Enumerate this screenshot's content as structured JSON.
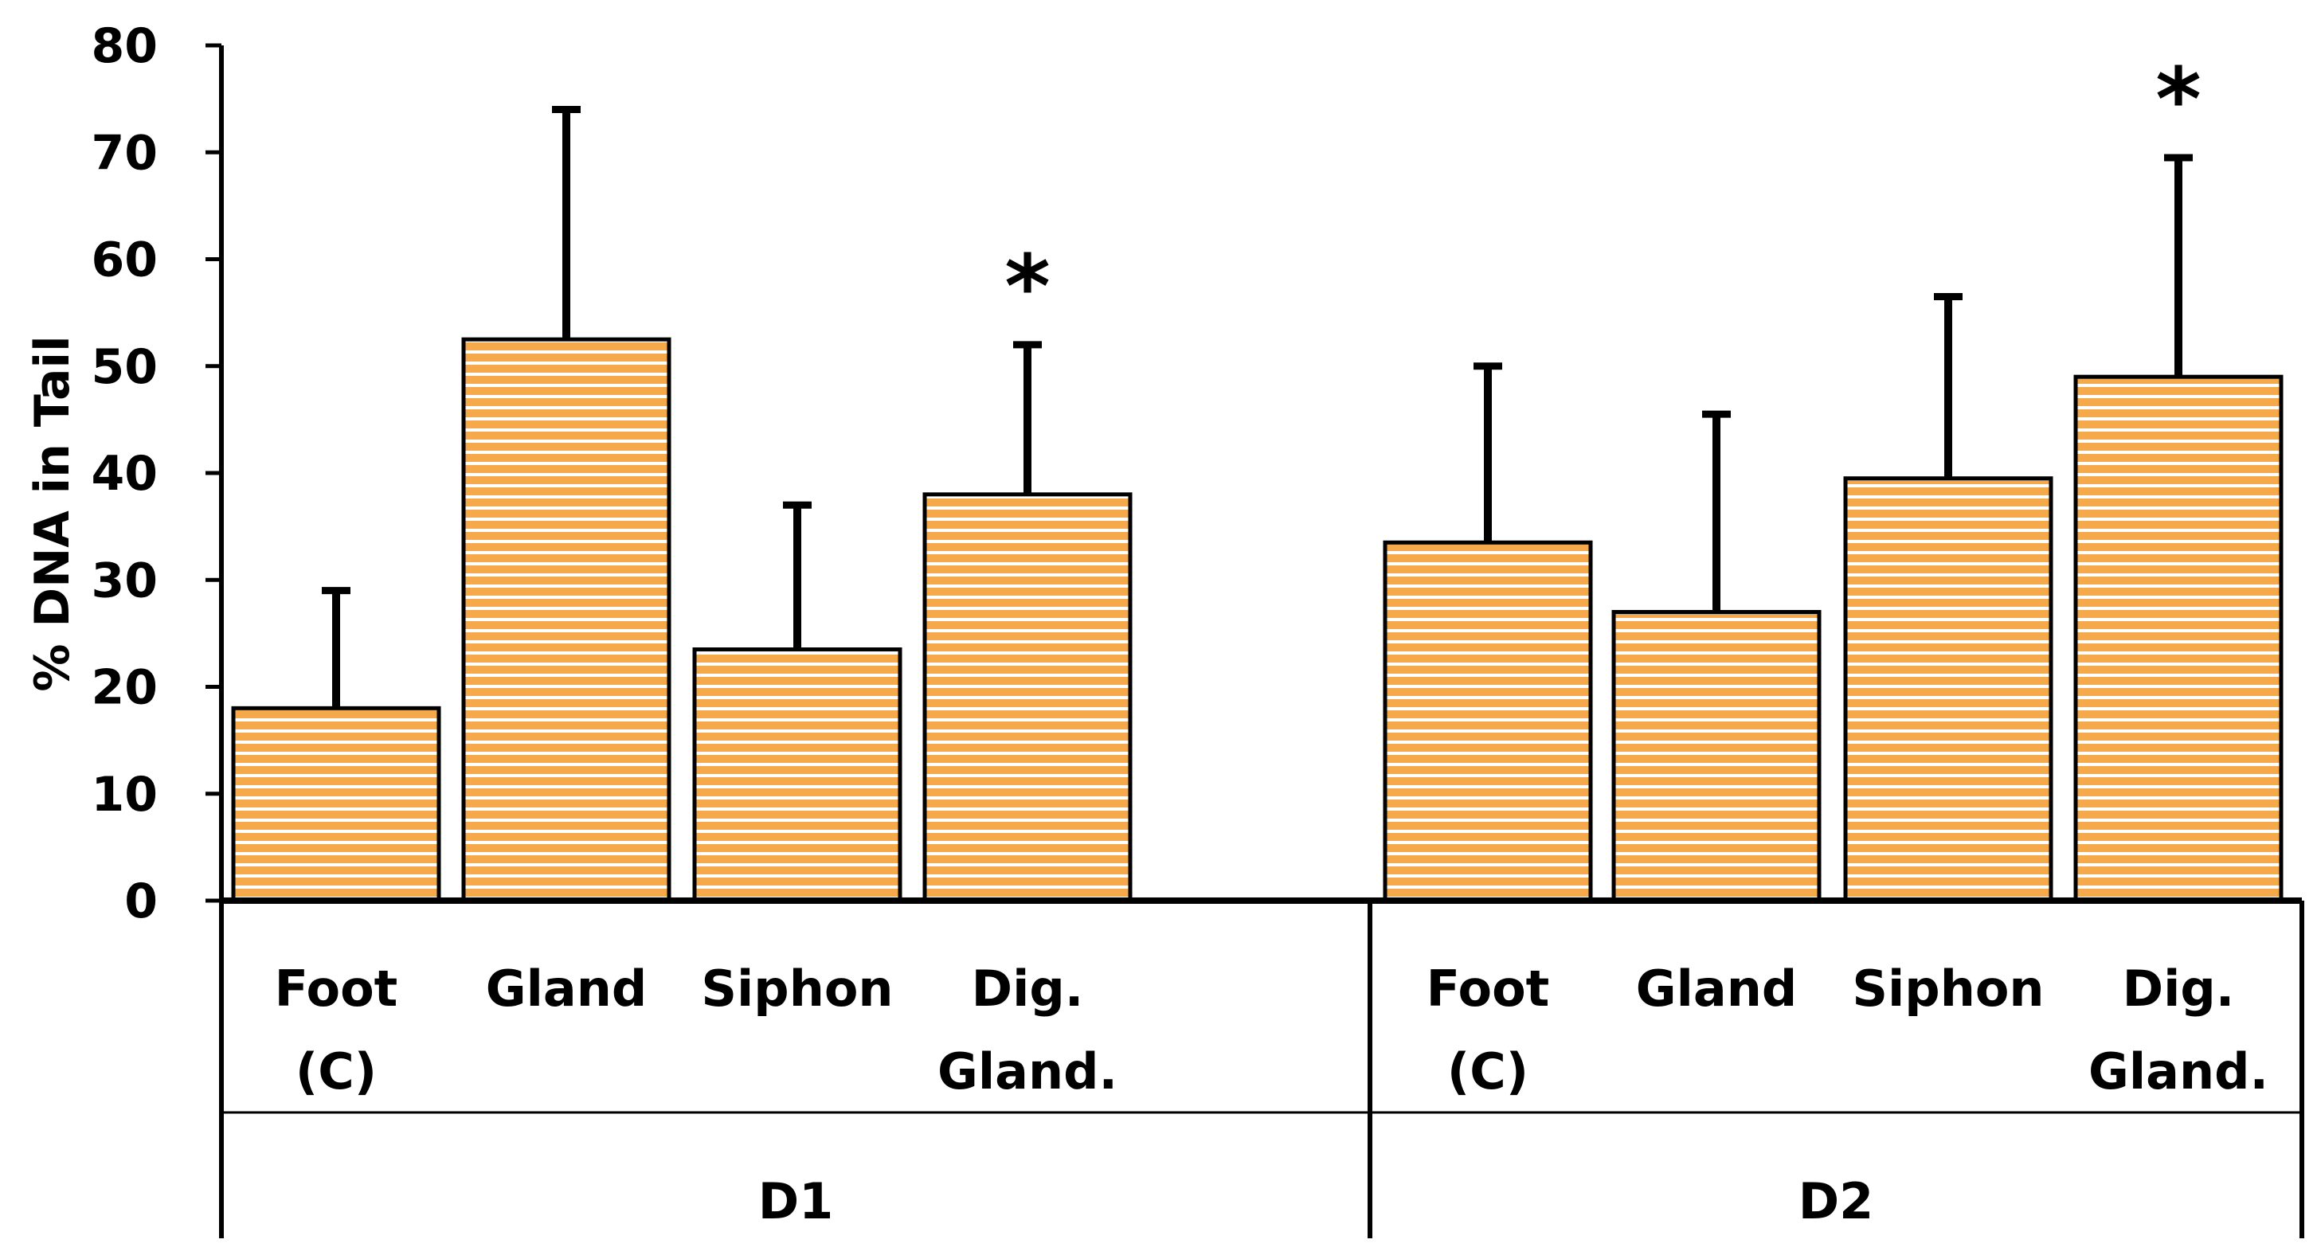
{
  "chart_data": {
    "type": "bar",
    "title": "",
    "xlabel": "",
    "ylabel": "% DNA in Tail",
    "ylim": [
      0,
      80
    ],
    "yticks": [
      0,
      10,
      20,
      30,
      40,
      50,
      60,
      70,
      80
    ],
    "grid": false,
    "legend": "none",
    "bar_color": "#f5a94a",
    "stripe_color": "#ffffff",
    "groups": [
      {
        "name": "D1",
        "bars": [
          {
            "label_lines": [
              "Foot",
              "(C)"
            ],
            "value": 18,
            "error": 11,
            "significant": false
          },
          {
            "label_lines": [
              "Gland"
            ],
            "value": 52.5,
            "error": 21.5,
            "significant": false
          },
          {
            "label_lines": [
              "Siphon"
            ],
            "value": 23.5,
            "error": 13.5,
            "significant": false
          },
          {
            "label_lines": [
              "Dig.",
              "Gland."
            ],
            "value": 38,
            "error": 14,
            "significant": true
          }
        ]
      },
      {
        "name": "D2",
        "bars": [
          {
            "label_lines": [
              "Foot",
              "(C)"
            ],
            "value": 33.5,
            "error": 16.5,
            "significant": false
          },
          {
            "label_lines": [
              "Gland"
            ],
            "value": 27,
            "error": 18.5,
            "significant": false
          },
          {
            "label_lines": [
              "Siphon"
            ],
            "value": 39.5,
            "error": 17,
            "significant": false
          },
          {
            "label_lines": [
              "Dig.",
              "Gland."
            ],
            "value": 49,
            "error": 20.5,
            "significant": true
          }
        ]
      }
    ],
    "significance_marker": "*"
  }
}
